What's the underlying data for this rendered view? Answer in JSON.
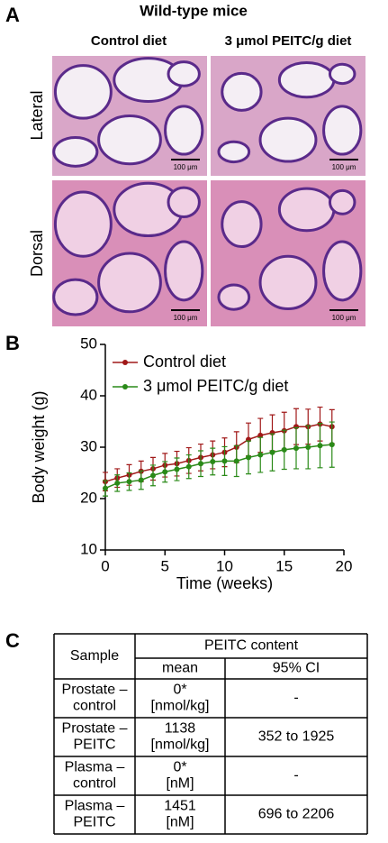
{
  "panel_a": {
    "label": "A",
    "title": "Wild-type mice",
    "columns": [
      "Control diet",
      "3 μmol PEITC/g diet"
    ],
    "rows": [
      "Lateral",
      "Dorsal"
    ],
    "scale_bar": "100 μm"
  },
  "panel_b": {
    "label": "B"
  },
  "chart_data": {
    "type": "line",
    "xlabel": "Time (weeks)",
    "ylabel": "Body weight (g)",
    "x": [
      0,
      1,
      2,
      3,
      4,
      5,
      6,
      7,
      8,
      9,
      10,
      11,
      12,
      13,
      14,
      15,
      16,
      17,
      18,
      19
    ],
    "xlim": [
      0,
      20
    ],
    "xticks": [
      0,
      5,
      10,
      15,
      20
    ],
    "ylim": [
      10,
      50
    ],
    "yticks": [
      10,
      20,
      30,
      40,
      50
    ],
    "legend": "upper left",
    "series": [
      {
        "name": "Control diet",
        "color": "#a01818",
        "values": [
          23.3,
          24,
          24.6,
          25.3,
          25.8,
          26.5,
          26.8,
          27.4,
          28,
          28.5,
          29,
          30,
          31.5,
          32.3,
          32.8,
          33.2,
          34,
          34,
          34.5,
          34
        ],
        "errors": [
          1.8,
          1.8,
          2,
          2,
          2.2,
          2.3,
          2.4,
          2.5,
          2.6,
          2.7,
          2.8,
          3,
          3.2,
          3.3,
          3.5,
          3.6,
          3.5,
          3.4,
          3.3,
          3.3
        ]
      },
      {
        "name": "3 μmol PEITC/g diet",
        "color": "#2a8a18",
        "values": [
          22,
          23,
          23.3,
          23.6,
          24.5,
          25.2,
          25.7,
          26.2,
          26.8,
          27.2,
          27.3,
          27.3,
          28,
          28.5,
          29,
          29.5,
          29.8,
          30,
          30.3,
          30.5
        ],
        "errors": [
          1.5,
          1.6,
          1.7,
          1.8,
          2,
          2,
          2.2,
          2.3,
          2.5,
          2.6,
          2.8,
          3,
          3.2,
          3.4,
          3.6,
          3.8,
          4,
          4.2,
          4.3,
          4.4
        ]
      }
    ]
  },
  "panel_c": {
    "label": "C",
    "table": {
      "header": {
        "sample": "Sample",
        "group": "PEITC content",
        "mean": "mean",
        "ci": "95% CI"
      },
      "rows": [
        {
          "sample": [
            "Prostate –",
            "control"
          ],
          "mean": [
            "0*",
            "[nmol/kg]"
          ],
          "ci": "-"
        },
        {
          "sample": [
            "Prostate –",
            "PEITC"
          ],
          "mean": [
            "1138",
            "[nmol/kg]"
          ],
          "ci": "352 to 1925"
        },
        {
          "sample": [
            "Plasma –",
            "control"
          ],
          "mean": [
            "0*",
            "[nM]"
          ],
          "ci": "-"
        },
        {
          "sample": [
            "Plasma –",
            "PEITC"
          ],
          "mean": [
            "1451",
            "[nM]"
          ],
          "ci": "696 to 2206"
        }
      ]
    }
  }
}
